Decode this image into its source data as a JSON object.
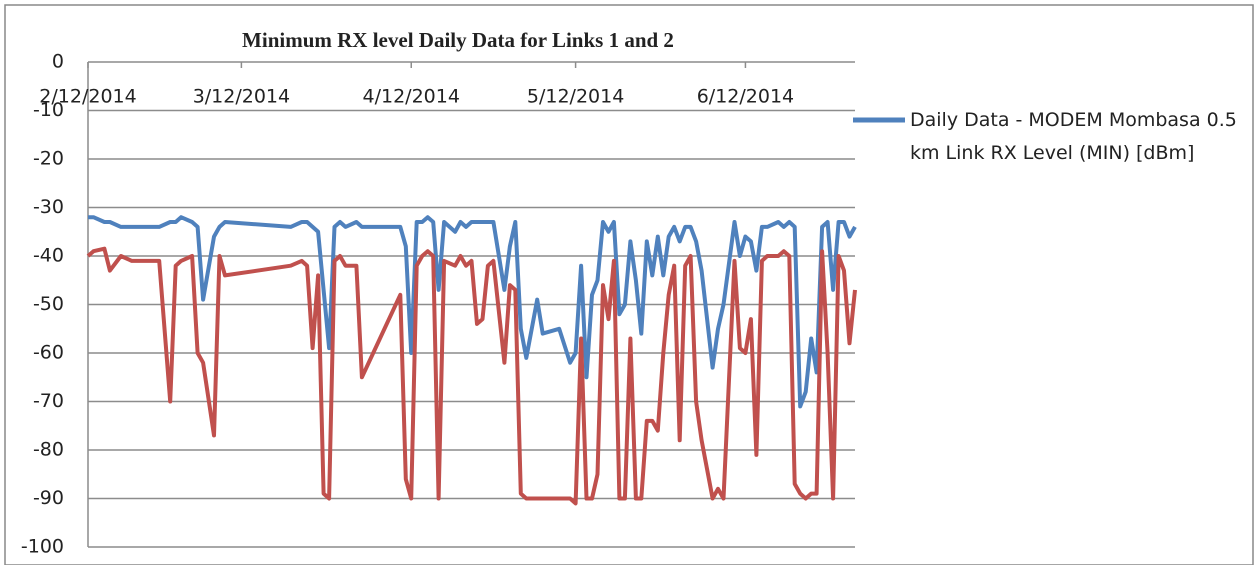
{
  "chart_data": {
    "type": "line",
    "title": "Minimum  RX level Daily Data for Links 1 and 2",
    "x": [
      "2014-02-12",
      "2014-02-13",
      "2014-02-15",
      "2014-02-16",
      "2014-02-18",
      "2014-02-20",
      "2014-02-25",
      "2014-02-27",
      "2014-02-28",
      "2014-03-01",
      "2014-03-03",
      "2014-03-04",
      "2014-03-05",
      "2014-03-07",
      "2014-03-08",
      "2014-03-09",
      "2014-03-21",
      "2014-03-23",
      "2014-03-24",
      "2014-03-25",
      "2014-03-26",
      "2014-03-27",
      "2014-03-28",
      "2014-03-29",
      "2014-03-30",
      "2014-03-31",
      "2014-04-02",
      "2014-04-03",
      "2014-04-10",
      "2014-04-11",
      "2014-04-12",
      "2014-04-13",
      "2014-04-14",
      "2014-04-15",
      "2014-04-16",
      "2014-04-17",
      "2014-04-18",
      "2014-04-20",
      "2014-04-21",
      "2014-04-22",
      "2014-04-23",
      "2014-04-24",
      "2014-04-25",
      "2014-04-26",
      "2014-04-27",
      "2014-04-29",
      "2014-04-30",
      "2014-05-01",
      "2014-05-02",
      "2014-05-03",
      "2014-05-05",
      "2014-05-06",
      "2014-05-09",
      "2014-05-11",
      "2014-05-12",
      "2014-05-13",
      "2014-05-14",
      "2014-05-15",
      "2014-05-16",
      "2014-05-17",
      "2014-05-18",
      "2014-05-19",
      "2014-05-20",
      "2014-05-21",
      "2014-05-22",
      "2014-05-23",
      "2014-05-24",
      "2014-05-25",
      "2014-05-26",
      "2014-05-27",
      "2014-05-28",
      "2014-05-29",
      "2014-05-30",
      "2014-05-31",
      "2014-06-01",
      "2014-06-02",
      "2014-06-03",
      "2014-06-04",
      "2014-06-06",
      "2014-06-07",
      "2014-06-08",
      "2014-06-10",
      "2014-06-11",
      "2014-06-12",
      "2014-06-13",
      "2014-06-14",
      "2014-06-15",
      "2014-06-16",
      "2014-06-18",
      "2014-06-19",
      "2014-06-20",
      "2014-06-21",
      "2014-06-22",
      "2014-06-23",
      "2014-06-24",
      "2014-06-25",
      "2014-06-26",
      "2014-06-27",
      "2014-06-28",
      "2014-06-29",
      "2014-06-30",
      "2014-07-01",
      "2014-07-02"
    ],
    "series": [
      {
        "name": "Daily Data - MODEM Mombasa 0.5 km Link RX Level (MIN) [dBm]",
        "color": "#4f81bd",
        "values": [
          -32,
          -32,
          -33,
          -33,
          -34,
          -34,
          -34,
          -33,
          -33,
          -32,
          -33,
          -34,
          -49,
          -36,
          -34,
          -33,
          -34,
          -33,
          -33,
          -34,
          -35,
          -47,
          -59,
          -34,
          -33,
          -34,
          -33,
          -34,
          -34,
          -38,
          -60,
          -33,
          -33,
          -32,
          -33,
          -47,
          -33,
          -35,
          -33,
          -34,
          -33,
          -33,
          -33,
          -33,
          -33,
          -47,
          -38,
          -33,
          -55,
          -61,
          -49,
          -56,
          -55,
          -62,
          -60,
          -42,
          -65,
          -48,
          -45,
          -33,
          -35,
          -33,
          -52,
          -50,
          -37,
          -45,
          -56,
          -37,
          -44,
          -36,
          -44,
          -36,
          -34,
          -37,
          -34,
          -34,
          -37,
          -43,
          -63,
          -55,
          -50,
          -33,
          -40,
          -36,
          -37,
          -43,
          -34,
          -34,
          -33,
          -34,
          -33,
          -34,
          -71,
          -68,
          -57,
          -64,
          -34,
          -33,
          -47,
          -33,
          -33,
          -36,
          -34
        ]
      },
      {
        "color": "#c0504d",
        "values": [
          -40,
          -39,
          -38.5,
          -43,
          -40,
          -41,
          -41,
          -70,
          -42,
          -41,
          -40,
          -60,
          -62,
          -77,
          -40,
          -44,
          -42,
          -41,
          -42,
          -59,
          -44,
          -89,
          -90,
          -41,
          -40,
          -42,
          -42,
          -65,
          -48,
          -86,
          -90,
          -42,
          -40,
          -39,
          -40,
          -90,
          -41,
          -42,
          -40,
          -42,
          -41,
          -54,
          -53,
          -42,
          -41,
          -62,
          -46,
          -47,
          -89,
          -90,
          -90,
          -90,
          -90,
          -90,
          -91,
          -57,
          -90,
          -90,
          -85,
          -46,
          -53,
          -41,
          -90,
          -90,
          -57,
          -90,
          -90,
          -74,
          -74,
          -76,
          -60,
          -48,
          -42,
          -78,
          -42,
          -40,
          -70,
          -78,
          -90,
          -88,
          -90,
          -41,
          -59,
          -60,
          -53,
          -81,
          -41,
          -40,
          -40,
          -39,
          -40,
          -87,
          -89,
          -90,
          -89,
          -89,
          -39,
          -60,
          -90,
          -40,
          -43,
          -58,
          -47
        ]
      }
    ],
    "xlim": [
      "2014-02-12",
      "2014-07-02"
    ],
    "xticks": [
      {
        "value": "2014-02-12",
        "label": "2/12/2014"
      },
      {
        "value": "2014-03-12",
        "label": "3/12/2014"
      },
      {
        "value": "2014-04-12",
        "label": "4/12/2014"
      },
      {
        "value": "2014-05-12",
        "label": "5/12/2014"
      },
      {
        "value": "2014-06-12",
        "label": "6/12/2014"
      }
    ],
    "ylim": [
      -100,
      0
    ],
    "yticks": [
      0,
      -10,
      -20,
      -30,
      -40,
      -50,
      -60,
      -70,
      -80,
      -90,
      -100
    ],
    "grid": true,
    "legend": "right"
  }
}
